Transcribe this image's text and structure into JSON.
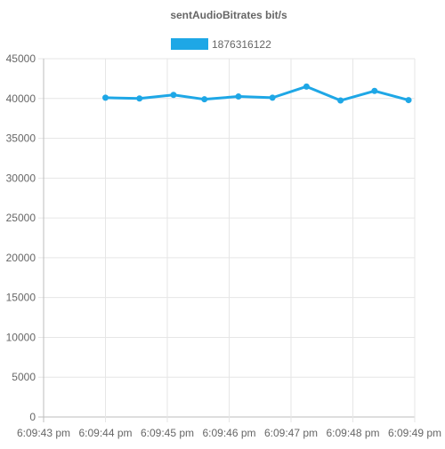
{
  "chart_data": {
    "type": "line",
    "title": "sentAudioBitrates bit/s",
    "legend_placement": "top",
    "grid": true,
    "series": [
      {
        "name": "1876316122",
        "color": "#1ea7e6",
        "points": [
          {
            "t": 1.0,
            "y": 40100
          },
          {
            "t": 1.55,
            "y": 40000
          },
          {
            "t": 2.1,
            "y": 40450
          },
          {
            "t": 2.6,
            "y": 39900
          },
          {
            "t": 3.15,
            "y": 40250
          },
          {
            "t": 3.7,
            "y": 40100
          },
          {
            "t": 4.25,
            "y": 41500
          },
          {
            "t": 4.8,
            "y": 39750
          },
          {
            "t": 5.35,
            "y": 40950
          },
          {
            "t": 5.9,
            "y": 39800
          }
        ]
      }
    ],
    "x_tick_labels": [
      "6:09:43 pm",
      "6:09:44 pm",
      "6:09:45 pm",
      "6:09:46 pm",
      "6:09:47 pm",
      "6:09:48 pm",
      "6:09:49 pm"
    ],
    "x_tick_values": [
      0,
      1,
      2,
      3,
      4,
      5,
      6
    ],
    "xlim": [
      0,
      6
    ],
    "y_ticks": [
      0,
      5000,
      10000,
      15000,
      20000,
      25000,
      30000,
      35000,
      40000,
      45000
    ],
    "ylim": [
      0,
      45000
    ]
  }
}
